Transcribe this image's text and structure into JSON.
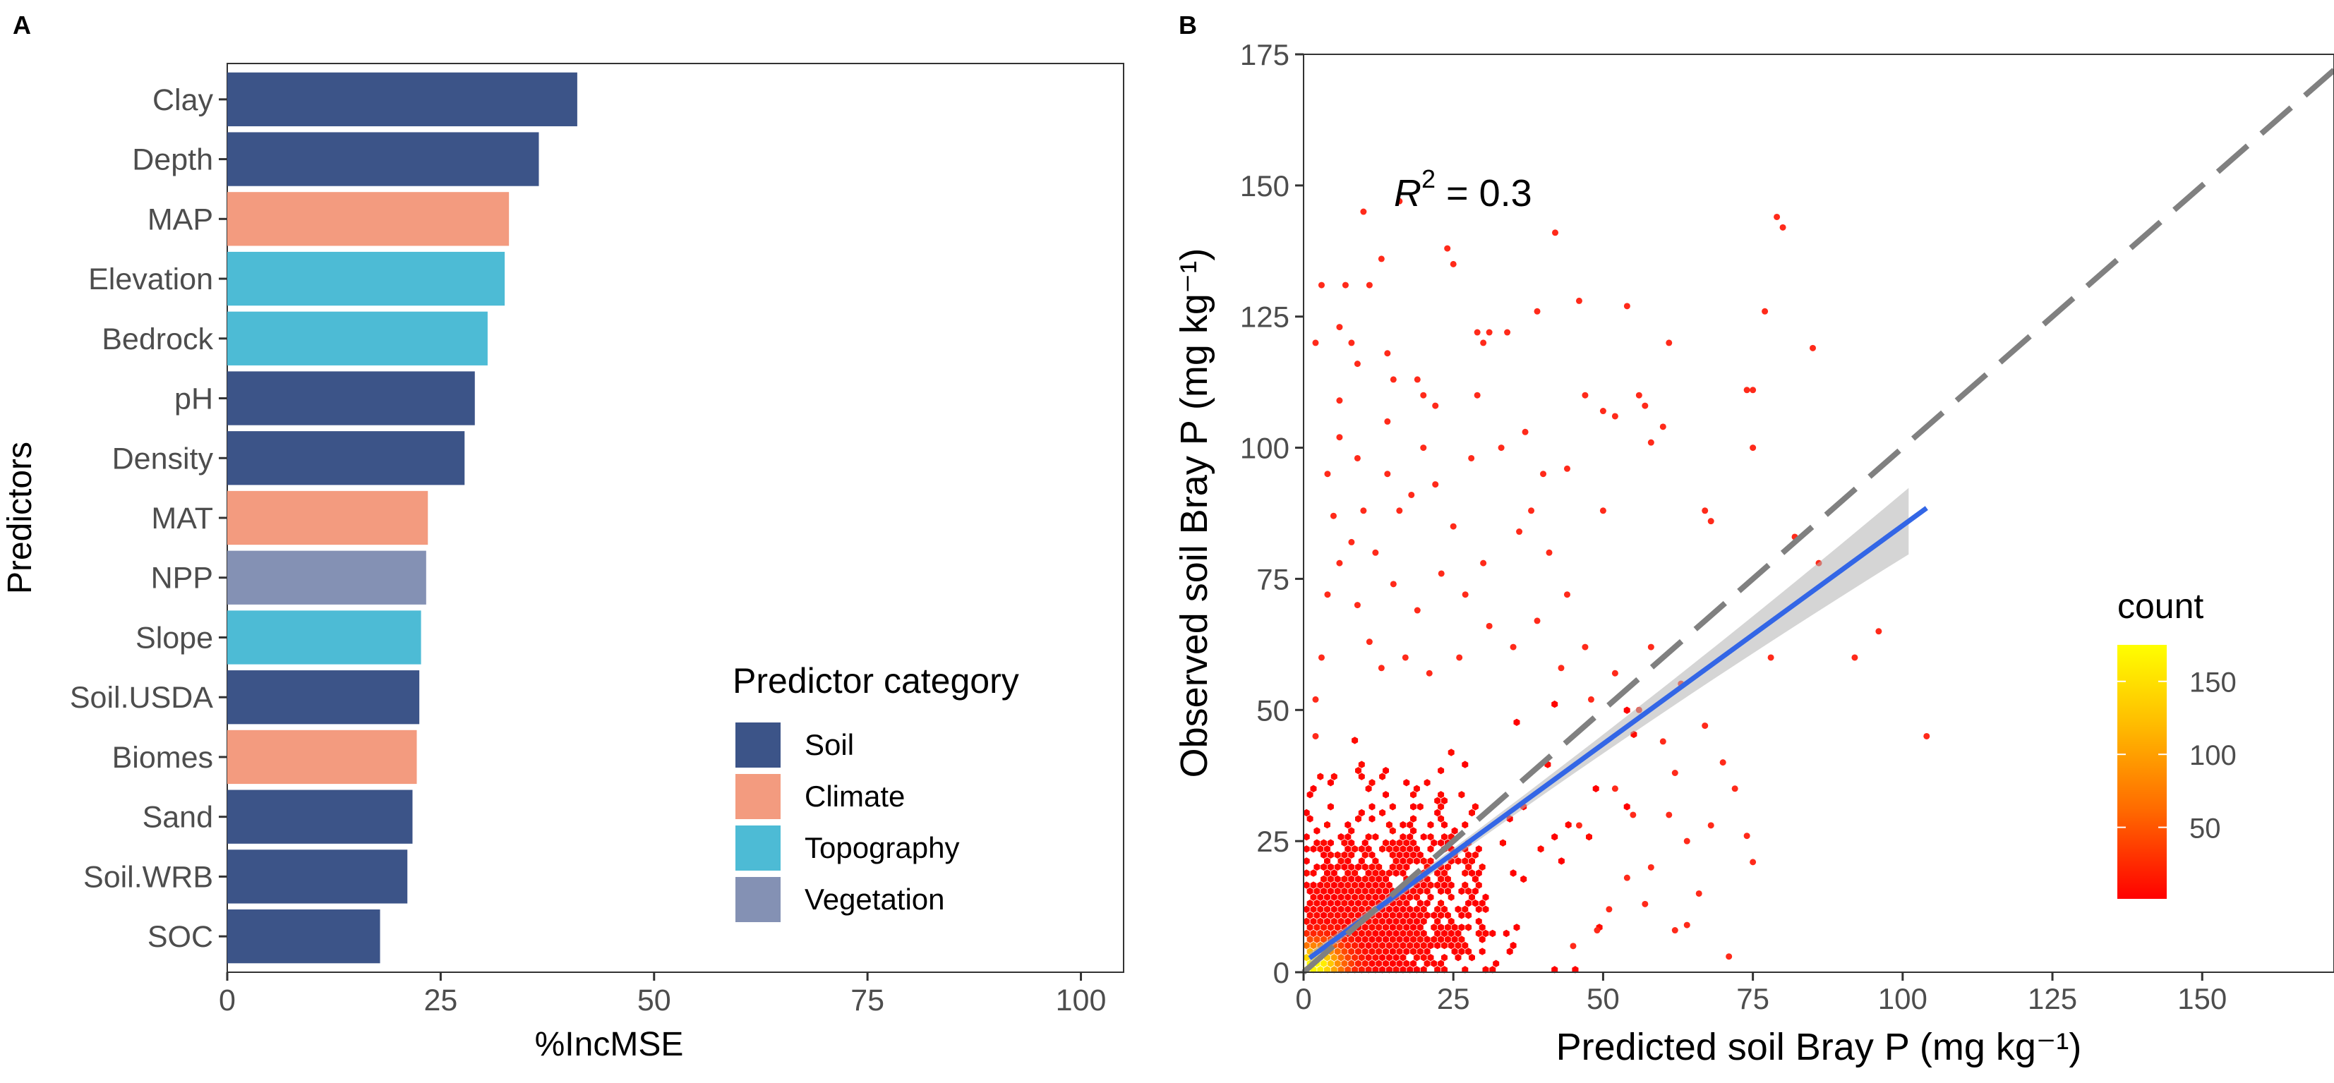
{
  "panels": {
    "a_label": "A",
    "b_label": "B"
  },
  "chart_data": [
    {
      "type": "bar",
      "orientation": "horizontal",
      "xlabel": "%IncMSE",
      "ylabel": "Predictors",
      "xlim": [
        0,
        105
      ],
      "xticks": [
        "0",
        "25",
        "50",
        "75",
        "100"
      ],
      "grid": false,
      "legend_position": "bottom-right",
      "categories": [
        "Clay",
        "Depth",
        "MAP",
        "Elevation",
        "Bedrock",
        "pH",
        "Density",
        "MAT",
        "NPP",
        "Slope",
        "Soil.USDA",
        "Biomes",
        "Sand",
        "Soil.WRB",
        "SOC"
      ],
      "values": [
        41,
        36.5,
        33,
        32.5,
        30.5,
        29,
        27.8,
        23.5,
        23.3,
        22.7,
        22.5,
        22.2,
        21.7,
        21.1,
        17.9
      ],
      "category_group": [
        "Soil",
        "Soil",
        "Climate",
        "Topography",
        "Topography",
        "Soil",
        "Soil",
        "Climate",
        "Vegetation",
        "Topography",
        "Soil",
        "Climate",
        "Soil",
        "Soil",
        "Soil"
      ],
      "legend": {
        "title": "Predictor category",
        "items": [
          {
            "name": "Soil",
            "color": "#3c5488"
          },
          {
            "name": "Climate",
            "color": "#f39b7f"
          },
          {
            "name": "Topography",
            "color": "#4dbbd5"
          },
          {
            "name": "Vegetation",
            "color": "#8491b4"
          }
        ]
      }
    },
    {
      "type": "scatter",
      "subtype": "hexbin density",
      "xlabel": "Predicted soil Bray P (mg kg⁻¹)",
      "ylabel": "Observed soil Bray P (mg kg⁻¹)",
      "xlim": [
        0,
        172
      ],
      "ylim": [
        0,
        175
      ],
      "xticks": [
        "0",
        "25",
        "50",
        "75",
        "100",
        "125",
        "150"
      ],
      "yticks": [
        "0",
        "25",
        "50",
        "75",
        "100",
        "125",
        "150",
        "175"
      ],
      "grid": false,
      "annotation": {
        "prefix": "R",
        "sup": "2",
        "suffix": " = 0.3"
      },
      "one_to_one_line": {
        "x": [
          0,
          172
        ],
        "y": [
          0,
          172
        ],
        "color": "#808080",
        "style": "dashed"
      },
      "fit_line": {
        "x": [
          1,
          104
        ],
        "y": [
          2.7,
          88.5
        ],
        "color": "#3366e6"
      },
      "colorbar": {
        "title": "count",
        "ticks": [
          "50",
          "100",
          "150"
        ],
        "tick_values": [
          50,
          100,
          150
        ],
        "range": [
          1,
          175
        ],
        "low_color": "#ff0000",
        "high_color": "#ffff00"
      },
      "points_outliers": [
        [
          2,
          120
        ],
        [
          3,
          131
        ],
        [
          7,
          131
        ],
        [
          6,
          109
        ],
        [
          8,
          120
        ],
        [
          9,
          116
        ],
        [
          6,
          123
        ],
        [
          10,
          145
        ],
        [
          11,
          131
        ],
        [
          13,
          136
        ],
        [
          14,
          118
        ],
        [
          15,
          113
        ],
        [
          16,
          147
        ],
        [
          19,
          113
        ],
        [
          20,
          110
        ],
        [
          22,
          108
        ],
        [
          24,
          138
        ],
        [
          25,
          135
        ],
        [
          29,
          122
        ],
        [
          30,
          120
        ],
        [
          31,
          122
        ],
        [
          34,
          122
        ],
        [
          39,
          126
        ],
        [
          42,
          141
        ],
        [
          46,
          128
        ],
        [
          47,
          110
        ],
        [
          50,
          107
        ],
        [
          52,
          106
        ],
        [
          54,
          127
        ],
        [
          56,
          110
        ],
        [
          57,
          108
        ],
        [
          58,
          101
        ],
        [
          60,
          104
        ],
        [
          61,
          120
        ],
        [
          67,
          88
        ],
        [
          68,
          86
        ],
        [
          74,
          111
        ],
        [
          75,
          111
        ],
        [
          75,
          100
        ],
        [
          77,
          126
        ],
        [
          79,
          144
        ],
        [
          80,
          142
        ],
        [
          85,
          119
        ],
        [
          86,
          78
        ],
        [
          92,
          60
        ],
        [
          96,
          65
        ],
        [
          104,
          45
        ],
        [
          74,
          26
        ],
        [
          75,
          21
        ],
        [
          62,
          8
        ],
        [
          64,
          9
        ],
        [
          71,
          3
        ],
        [
          58,
          20
        ],
        [
          54,
          18
        ],
        [
          49,
          8
        ],
        [
          45,
          5
        ],
        [
          46,
          28
        ],
        [
          52,
          35
        ],
        [
          55,
          30
        ],
        [
          60,
          44
        ],
        [
          62,
          38
        ],
        [
          64,
          25
        ],
        [
          66,
          15
        ],
        [
          56,
          50
        ],
        [
          52,
          57
        ],
        [
          47,
          62
        ],
        [
          44,
          72
        ],
        [
          41,
          80
        ],
        [
          38,
          88
        ],
        [
          33,
          100
        ],
        [
          28,
          98
        ],
        [
          25,
          85
        ],
        [
          22,
          93
        ],
        [
          20,
          100
        ],
        [
          18,
          91
        ],
        [
          16,
          88
        ],
        [
          14,
          95
        ],
        [
          12,
          80
        ],
        [
          10,
          88
        ],
        [
          8,
          82
        ],
        [
          6,
          78
        ],
        [
          4,
          72
        ],
        [
          3,
          60
        ],
        [
          2,
          52
        ],
        [
          2,
          45
        ],
        [
          4,
          95
        ],
        [
          6,
          102
        ],
        [
          9,
          70
        ],
        [
          11,
          63
        ],
        [
          15,
          74
        ],
        [
          19,
          69
        ],
        [
          23,
          76
        ],
        [
          27,
          72
        ],
        [
          31,
          66
        ],
        [
          35,
          62
        ],
        [
          39,
          67
        ],
        [
          43,
          58
        ],
        [
          48,
          52
        ],
        [
          40,
          95
        ],
        [
          36,
          84
        ],
        [
          30,
          78
        ],
        [
          26,
          60
        ],
        [
          21,
          57
        ],
        [
          17,
          60
        ],
        [
          13,
          58
        ],
        [
          58,
          62
        ],
        [
          63,
          55
        ],
        [
          67,
          47
        ],
        [
          70,
          40
        ],
        [
          72,
          35
        ],
        [
          68,
          28
        ],
        [
          61,
          30
        ],
        [
          57,
          13
        ],
        [
          51,
          12
        ],
        [
          82,
          83
        ],
        [
          78,
          60
        ],
        [
          50,
          88
        ],
        [
          44,
          96
        ],
        [
          37,
          103
        ],
        [
          29,
          110
        ],
        [
          14,
          105
        ],
        [
          9,
          98
        ],
        [
          5,
          87
        ]
      ]
    }
  ]
}
